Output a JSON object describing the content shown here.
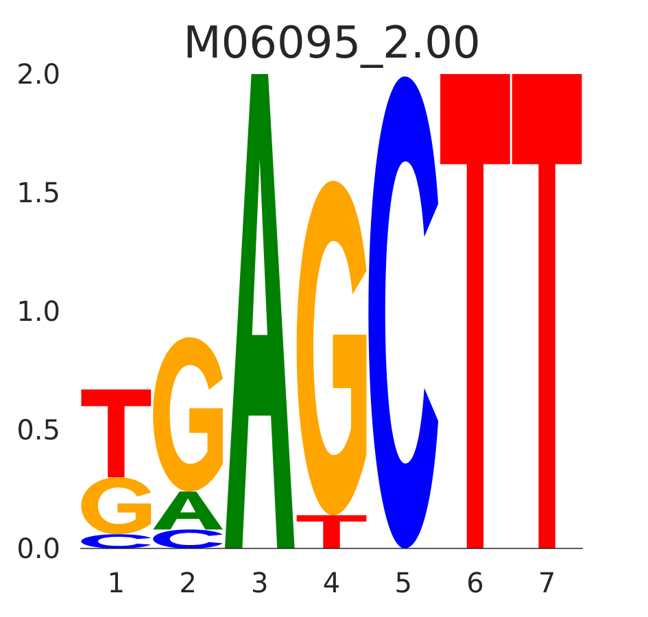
{
  "chart_data": {
    "type": "sequence-logo",
    "title": "M06095_2.00",
    "xlabel": "",
    "ylabel": "",
    "ylim": [
      0,
      2.0
    ],
    "y_ticks": [
      "0.0",
      "0.5",
      "1.0",
      "1.5",
      "2.0"
    ],
    "x_ticks": [
      "1",
      "2",
      "3",
      "4",
      "5",
      "6",
      "7"
    ],
    "grid": false,
    "colors": {
      "A": "#008000",
      "C": "#0000ff",
      "G": "#ffa500",
      "T": "#ff0000"
    },
    "positions": [
      {
        "position": "1",
        "letters": [
          {
            "base": "C",
            "height": 0.06
          },
          {
            "base": "G",
            "height": 0.24
          },
          {
            "base": "T",
            "height": 0.37
          }
        ]
      },
      {
        "position": "2",
        "letters": [
          {
            "base": "C",
            "height": 0.08
          },
          {
            "base": "A",
            "height": 0.16
          },
          {
            "base": "G",
            "height": 0.65
          }
        ]
      },
      {
        "position": "3",
        "letters": [
          {
            "base": "A",
            "height": 2.0
          }
        ]
      },
      {
        "position": "4",
        "letters": [
          {
            "base": "T",
            "height": 0.14
          },
          {
            "base": "G",
            "height": 1.41
          }
        ]
      },
      {
        "position": "5",
        "letters": [
          {
            "base": "C",
            "height": 1.99
          }
        ]
      },
      {
        "position": "6",
        "letters": [
          {
            "base": "T",
            "height": 2.0
          }
        ]
      },
      {
        "position": "7",
        "letters": [
          {
            "base": "T",
            "height": 2.0
          }
        ]
      }
    ]
  }
}
